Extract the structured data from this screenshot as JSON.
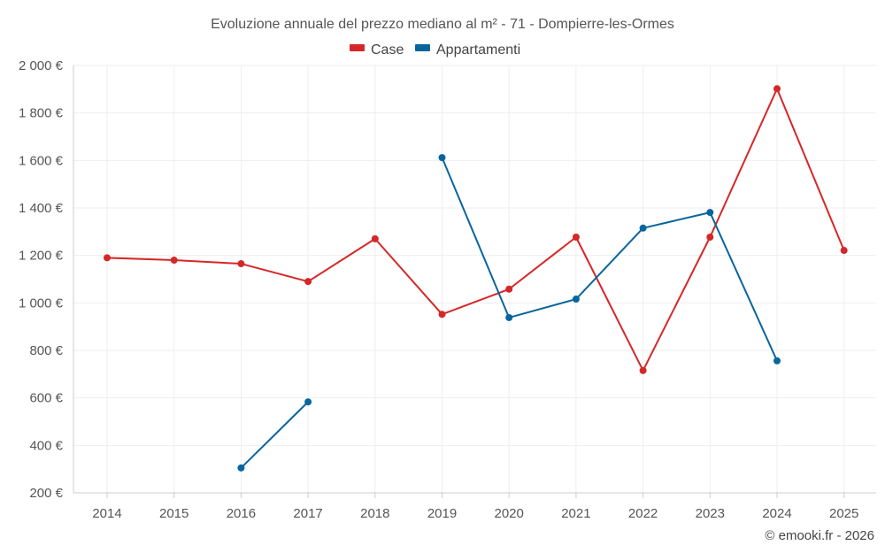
{
  "chart_data": {
    "type": "line",
    "title": "Evoluzione annuale del prezzo mediano al m² - 71 - Dompierre-les-Ormes",
    "categories": [
      "2014",
      "2015",
      "2016",
      "2017",
      "2018",
      "2019",
      "2020",
      "2021",
      "2022",
      "2023",
      "2024",
      "2025"
    ],
    "ylim": [
      200,
      2000
    ],
    "yticks": [
      200,
      400,
      600,
      800,
      1000,
      1200,
      1400,
      1600,
      1800,
      2000
    ],
    "ytick_labels": [
      "200 €",
      "400 €",
      "600 €",
      "800 €",
      "1 000 €",
      "1 200 €",
      "1 400 €",
      "1 600 €",
      "1 800 €",
      "2 000 €"
    ],
    "grid": true,
    "legend_position": "top-center",
    "series": [
      {
        "name": "Case",
        "color": "#d62728",
        "values": [
          1190,
          1180,
          1165,
          1090,
          1270,
          952,
          1058,
          1277,
          715,
          1277,
          1902,
          1221
        ]
      },
      {
        "name": "Appartamenti",
        "color": "#07659d",
        "values": [
          null,
          null,
          305,
          583,
          null,
          1612,
          938,
          1016,
          1315,
          1381,
          756,
          null
        ]
      }
    ],
    "credit": "© emooki.fr - 2026"
  }
}
